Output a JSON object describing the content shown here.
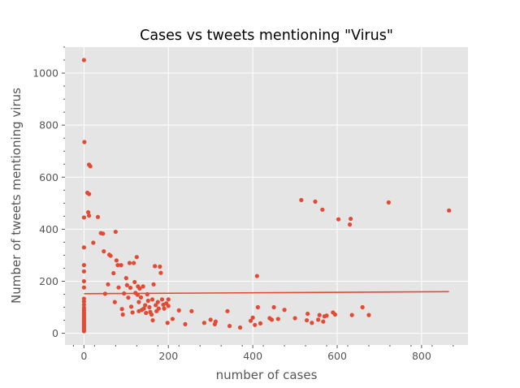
{
  "chart_data": {
    "type": "scatter",
    "title": "Cases vs tweets mentioning \"Virus\"",
    "xlabel": "number of cases",
    "ylabel": "Number of tweets mentioning virus",
    "xlim": [
      -45,
      910
    ],
    "ylim": [
      -45,
      1100
    ],
    "x_ticks": [
      0,
      200,
      400,
      600,
      800
    ],
    "y_ticks": [
      0,
      200,
      400,
      600,
      800,
      1000
    ],
    "x_tick_labels": [
      "0",
      "200",
      "400",
      "600",
      "800"
    ],
    "y_tick_labels": [
      "0",
      "200",
      "400",
      "600",
      "800",
      "1000"
    ],
    "grid": true,
    "colors": {
      "background": "#e5e5e5",
      "points": "#e24a33",
      "trend": "#e24a33",
      "grid": "#ffffff"
    },
    "trend_line": {
      "x": [
        0,
        865
      ],
      "y": [
        152,
        160
      ]
    },
    "points": [
      [
        0,
        1050
      ],
      [
        1,
        735
      ],
      [
        0,
        445
      ],
      [
        0,
        330
      ],
      [
        0,
        262
      ],
      [
        0,
        238
      ],
      [
        0,
        200
      ],
      [
        0,
        176
      ],
      [
        0,
        133
      ],
      [
        0,
        122
      ],
      [
        0,
        110
      ],
      [
        0,
        98
      ],
      [
        0,
        90
      ],
      [
        0,
        82
      ],
      [
        0,
        75
      ],
      [
        0,
        68
      ],
      [
        0,
        60
      ],
      [
        0,
        55
      ],
      [
        0,
        48
      ],
      [
        0,
        42
      ],
      [
        0,
        36
      ],
      [
        0,
        30
      ],
      [
        0,
        24
      ],
      [
        0,
        18
      ],
      [
        0,
        12
      ],
      [
        0,
        8
      ],
      [
        8,
        540
      ],
      [
        12,
        535
      ],
      [
        10,
        465
      ],
      [
        12,
        452
      ],
      [
        12,
        648
      ],
      [
        15,
        642
      ],
      [
        22,
        348
      ],
      [
        33,
        447
      ],
      [
        40,
        385
      ],
      [
        45,
        383
      ],
      [
        47,
        315
      ],
      [
        50,
        152
      ],
      [
        57,
        188
      ],
      [
        60,
        302
      ],
      [
        63,
        298
      ],
      [
        70,
        231
      ],
      [
        73,
        120
      ],
      [
        75,
        390
      ],
      [
        77,
        280
      ],
      [
        80,
        262
      ],
      [
        82,
        176
      ],
      [
        88,
        262
      ],
      [
        90,
        93
      ],
      [
        92,
        72
      ],
      [
        95,
        153
      ],
      [
        100,
        212
      ],
      [
        102,
        185
      ],
      [
        105,
        137
      ],
      [
        108,
        270
      ],
      [
        110,
        175
      ],
      [
        112,
        102
      ],
      [
        115,
        80
      ],
      [
        118,
        270
      ],
      [
        120,
        197
      ],
      [
        122,
        155
      ],
      [
        125,
        293
      ],
      [
        127,
        148
      ],
      [
        128,
        180
      ],
      [
        130,
        120
      ],
      [
        130,
        85
      ],
      [
        132,
        172
      ],
      [
        135,
        138
      ],
      [
        137,
        90
      ],
      [
        140,
        180
      ],
      [
        142,
        95
      ],
      [
        145,
        108
      ],
      [
        147,
        78
      ],
      [
        150,
        150
      ],
      [
        152,
        125
      ],
      [
        155,
        100
      ],
      [
        157,
        82
      ],
      [
        160,
        72
      ],
      [
        162,
        130
      ],
      [
        163,
        50
      ],
      [
        165,
        188
      ],
      [
        168,
        258
      ],
      [
        170,
        108
      ],
      [
        172,
        85
      ],
      [
        175,
        120
      ],
      [
        177,
        95
      ],
      [
        180,
        256
      ],
      [
        182,
        232
      ],
      [
        185,
        130
      ],
      [
        188,
        110
      ],
      [
        190,
        95
      ],
      [
        195,
        115
      ],
      [
        200,
        130
      ],
      [
        200,
        105
      ],
      [
        198,
        40
      ],
      [
        210,
        55
      ],
      [
        225,
        88
      ],
      [
        240,
        35
      ],
      [
        255,
        85
      ],
      [
        285,
        40
      ],
      [
        300,
        52
      ],
      [
        310,
        35
      ],
      [
        312,
        45
      ],
      [
        340,
        85
      ],
      [
        345,
        28
      ],
      [
        370,
        22
      ],
      [
        395,
        48
      ],
      [
        400,
        60
      ],
      [
        405,
        32
      ],
      [
        410,
        220
      ],
      [
        412,
        100
      ],
      [
        418,
        38
      ],
      [
        440,
        58
      ],
      [
        445,
        52
      ],
      [
        450,
        100
      ],
      [
        460,
        55
      ],
      [
        475,
        90
      ],
      [
        500,
        58
      ],
      [
        515,
        512
      ],
      [
        528,
        50
      ],
      [
        530,
        75
      ],
      [
        540,
        40
      ],
      [
        548,
        506
      ],
      [
        555,
        52
      ],
      [
        558,
        70
      ],
      [
        565,
        475
      ],
      [
        567,
        45
      ],
      [
        570,
        65
      ],
      [
        575,
        68
      ],
      [
        590,
        80
      ],
      [
        595,
        72
      ],
      [
        603,
        438
      ],
      [
        630,
        418
      ],
      [
        632,
        440
      ],
      [
        635,
        70
      ],
      [
        660,
        100
      ],
      [
        675,
        70
      ],
      [
        722,
        503
      ],
      [
        865,
        472
      ]
    ]
  }
}
